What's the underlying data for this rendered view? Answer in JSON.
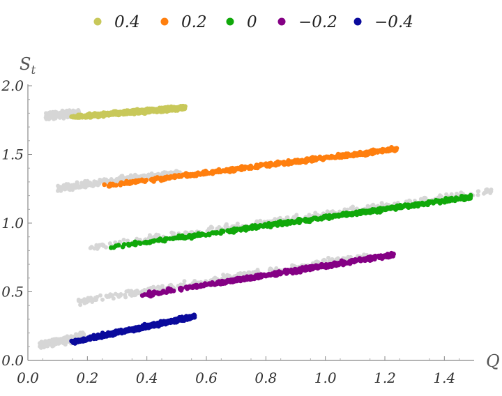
{
  "chart_data": {
    "type": "scatter",
    "xlabel": "Q",
    "ylabel": "S_t",
    "xlim": [
      0,
      1.5
    ],
    "ylim": [
      0,
      2.0
    ],
    "xticks": [
      "0.0",
      "0.2",
      "0.4",
      "0.6",
      "0.8",
      "1.0",
      "1.2",
      "1.4"
    ],
    "yticks": [
      "0.0",
      "0.5",
      "1.0",
      "1.5",
      "2.0"
    ],
    "legend_position": "top",
    "background_series_color": "#d6d6d6",
    "series": [
      {
        "name": "0.4",
        "color": "#c8c85a",
        "gray_range": [
          0.06,
          0.15
        ],
        "x_range": [
          0.14,
          0.53
        ],
        "y_start": 1.77,
        "y_end": 1.84
      },
      {
        "name": "0.2",
        "color": "#ff7f0e",
        "gray_range": [
          0.1,
          0.43
        ],
        "x_range": [
          0.25,
          1.24
        ],
        "y_start": 1.27,
        "y_end": 1.54
      },
      {
        "name": "0",
        "color": "#10a80a",
        "gray_range": [
          0.21,
          1.3
        ],
        "x_range": [
          0.27,
          1.49
        ],
        "y_start": 0.82,
        "y_end": 1.19
      },
      {
        "name": "−0.2",
        "color": "#840084",
        "gray_range": [
          0.17,
          0.95
        ],
        "x_range": [
          0.37,
          1.23
        ],
        "y_start": 0.47,
        "y_end": 0.77
      },
      {
        "name": "−0.4",
        "color": "#0a0a9c",
        "gray_range": [
          0.04,
          0.16
        ],
        "x_range": [
          0.14,
          0.56
        ],
        "y_start": 0.13,
        "y_end": 0.32
      }
    ]
  }
}
